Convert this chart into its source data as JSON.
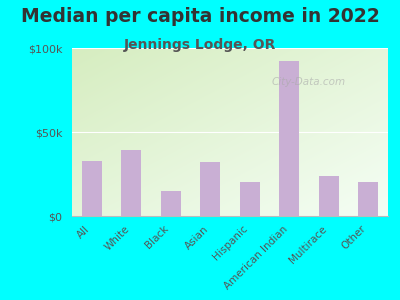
{
  "title": "Median per capita income in 2022",
  "subtitle": "Jennings Lodge, OR",
  "categories": [
    "All",
    "White",
    "Black",
    "Asian",
    "Hispanic",
    "American Indian",
    "Multirace",
    "Other"
  ],
  "values": [
    33000,
    39000,
    15000,
    32000,
    20000,
    92000,
    24000,
    20000
  ],
  "bar_color": "#c9afd4",
  "background_outer": "#00FFFF",
  "title_color": "#333333",
  "subtitle_color": "#555555",
  "tick_color": "#555555",
  "ylim": [
    0,
    100000
  ],
  "yticks": [
    0,
    50000,
    100000
  ],
  "ytick_labels": [
    "$0",
    "$50k",
    "$100k"
  ],
  "title_fontsize": 13.5,
  "subtitle_fontsize": 10,
  "watermark": "City-Data.com",
  "gradient_top_left": "#d6edc0",
  "gradient_bottom_right": "#f5fef5"
}
